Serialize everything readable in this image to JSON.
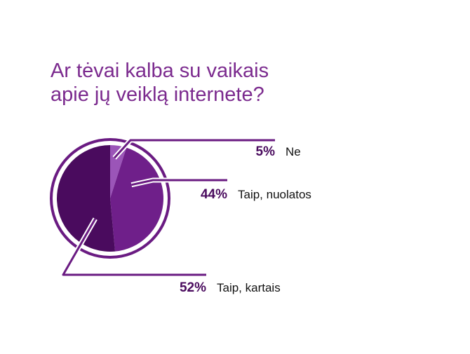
{
  "chart_data": {
    "type": "pie",
    "title": "Ar tėvai kalba su vaikais apie jų veiklą internete?",
    "title_lines": [
      "Ar tėvai kalba su vaikais",
      "apie jų veiklą internete?"
    ],
    "slices": [
      {
        "label": "Ne",
        "value": 5,
        "value_label": "5%",
        "color": "#9b55b8"
      },
      {
        "label": "Taip, nuolatos",
        "value": 44,
        "value_label": "44%",
        "color": "#6f1f8a"
      },
      {
        "label": "Taip, kartais",
        "value": 52,
        "value_label": "52%",
        "color": "#4a0b5e"
      }
    ],
    "legend": "none",
    "colors": {
      "title": "#7b2a8e",
      "ring": "#6a1b82",
      "leader": "#6a1b82",
      "percent_text": "#4a0b5e",
      "label_text": "#111111"
    }
  }
}
